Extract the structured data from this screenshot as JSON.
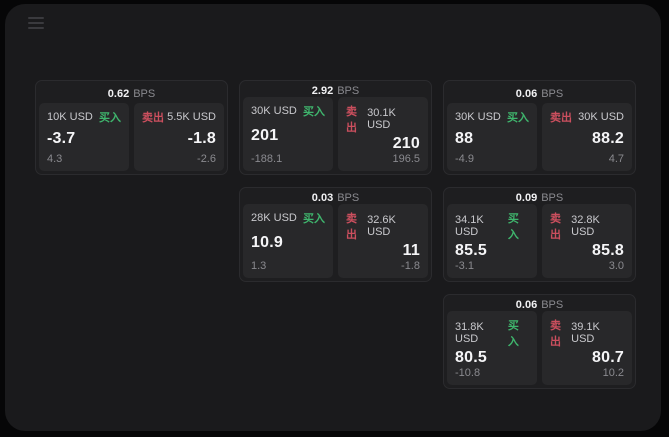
{
  "labels": {
    "bps_unit": "BPS",
    "buy": "买入",
    "sell": "卖出"
  },
  "colors": {
    "buy_green": "#3fb56d",
    "sell_red": "#cc4f5e",
    "surface": "#1a1a1c",
    "card": "#1e1e20",
    "panel": "#28282a"
  },
  "icons": {
    "menu": "hamburger-menu"
  },
  "cards": [
    {
      "bps": "0.62",
      "buy": {
        "size": "10K USD",
        "price": "-3.7",
        "delta": "4.3"
      },
      "sell": {
        "size": "5.5K USD",
        "price": "-1.8",
        "delta": "-2.6"
      }
    },
    {
      "bps": "2.92",
      "buy": {
        "size": "30K USD",
        "price": "201",
        "delta": "-188.1"
      },
      "sell": {
        "size": "30.1K USD",
        "price": "210",
        "delta": "196.5"
      }
    },
    {
      "bps": "0.06",
      "buy": {
        "size": "30K USD",
        "price": "88",
        "delta": "-4.9"
      },
      "sell": {
        "size": "30K USD",
        "price": "88.2",
        "delta": "4.7"
      }
    },
    {
      "bps": "0.03",
      "buy": {
        "size": "28K USD",
        "price": "10.9",
        "delta": "1.3"
      },
      "sell": {
        "size": "32.6K USD",
        "price": "11",
        "delta": "-1.8"
      }
    },
    {
      "bps": "0.09",
      "buy": {
        "size": "34.1K USD",
        "price": "85.5",
        "delta": "-3.1"
      },
      "sell": {
        "size": "32.8K USD",
        "price": "85.8",
        "delta": "3.0"
      }
    },
    {
      "bps": "0.06",
      "buy": {
        "size": "31.8K USD",
        "price": "80.5",
        "delta": "-10.8"
      },
      "sell": {
        "size": "39.1K USD",
        "price": "80.7",
        "delta": "10.2"
      }
    }
  ]
}
